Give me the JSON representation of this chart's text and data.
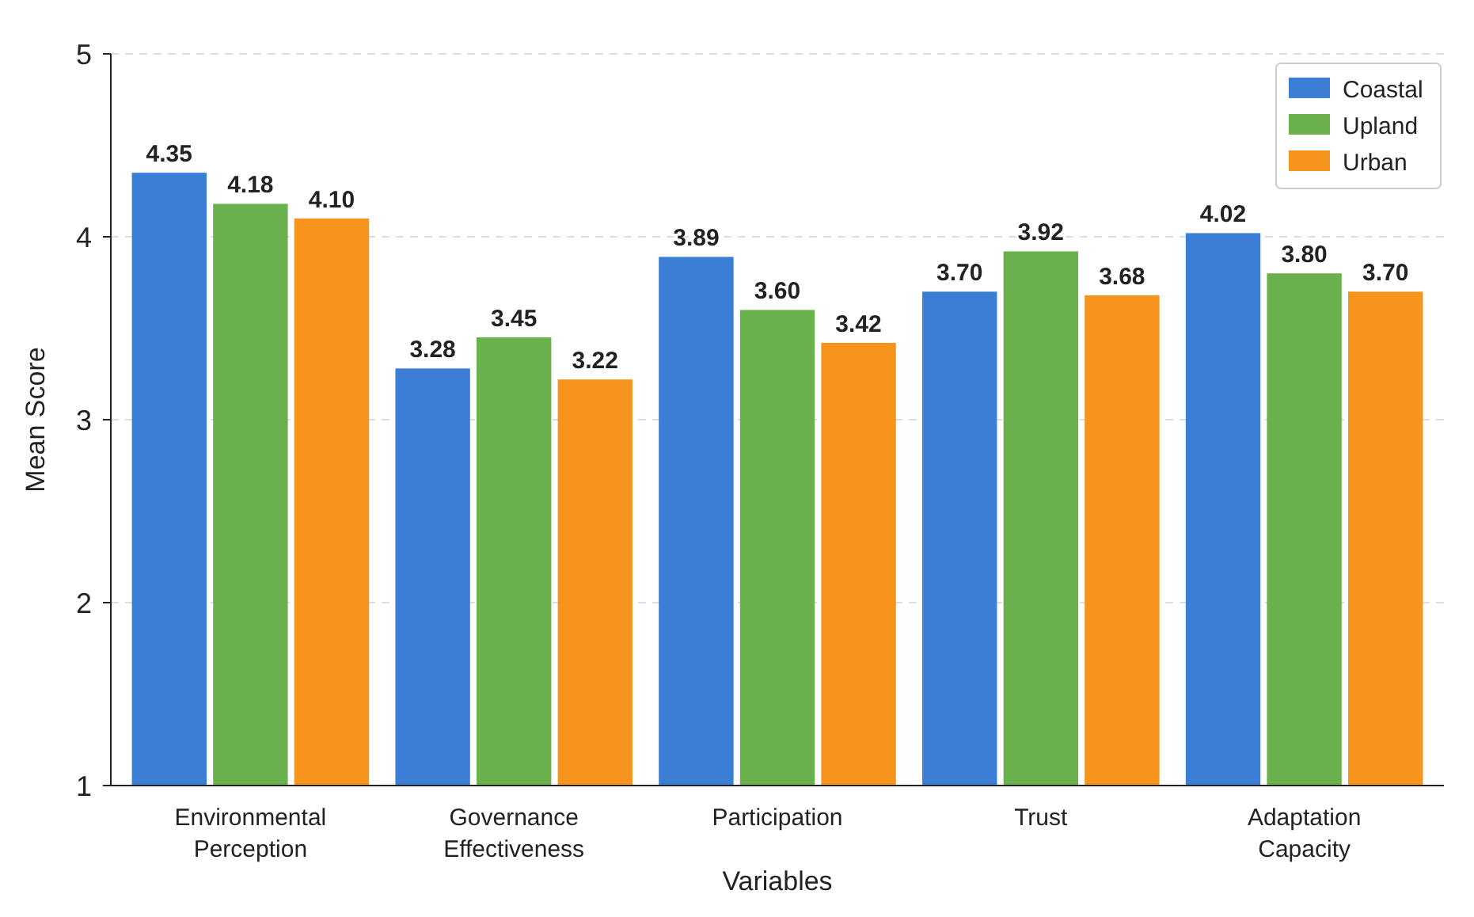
{
  "chart_data": {
    "type": "bar",
    "xlabel": "Variables",
    "ylabel": "Mean Score",
    "categories": [
      "Environmental\nPerception",
      "Governance\nEffectiveness",
      "Participation",
      "Trust",
      "Adaptation\nCapacity"
    ],
    "series": [
      {
        "name": "Coastal",
        "color": "#3a7fd5",
        "values": [
          4.35,
          3.28,
          3.89,
          3.7,
          4.02
        ],
        "value_labels": [
          "4.35",
          "3.28",
          "3.89",
          "3.70",
          "4.02"
        ]
      },
      {
        "name": "Upland",
        "color": "#6ab04c",
        "values": [
          4.18,
          3.45,
          3.6,
          3.92,
          3.8
        ],
        "value_labels": [
          "4.18",
          "3.45",
          "3.60",
          "3.92",
          "3.80"
        ]
      },
      {
        "name": "Urban",
        "color": "#f7941d",
        "values": [
          4.1,
          3.22,
          3.42,
          3.68,
          3.7
        ],
        "value_labels": [
          "4.10",
          "3.22",
          "3.42",
          "3.68",
          "3.70"
        ]
      }
    ],
    "ylim": [
      1,
      5
    ],
    "yticks": [
      1,
      2,
      3,
      4,
      5
    ],
    "grid": "y",
    "legend": "top right"
  }
}
